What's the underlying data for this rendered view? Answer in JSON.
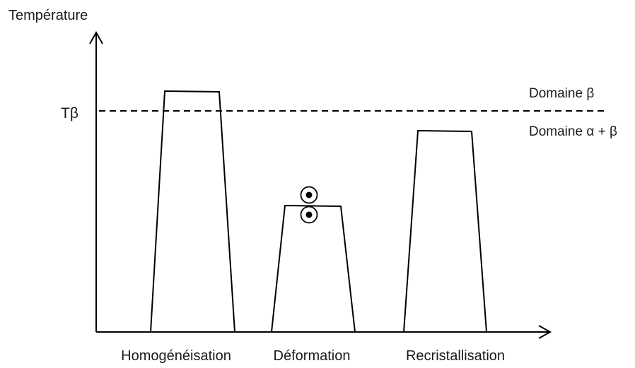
{
  "axis": {
    "y_label": "Température"
  },
  "t_beta_label": "Tβ",
  "domains": {
    "above": "Domaine β",
    "below": "Domaine α + β"
  },
  "steps": [
    {
      "label": "Homogénéisation"
    },
    {
      "label": "Déformation"
    },
    {
      "label": "Recristallisation"
    }
  ],
  "colors": {
    "stroke": "#000000",
    "text": "#1a1a1a",
    "background": "#ffffff"
  },
  "icons": {
    "rolling_symbol": "dotted-circle-pair"
  }
}
